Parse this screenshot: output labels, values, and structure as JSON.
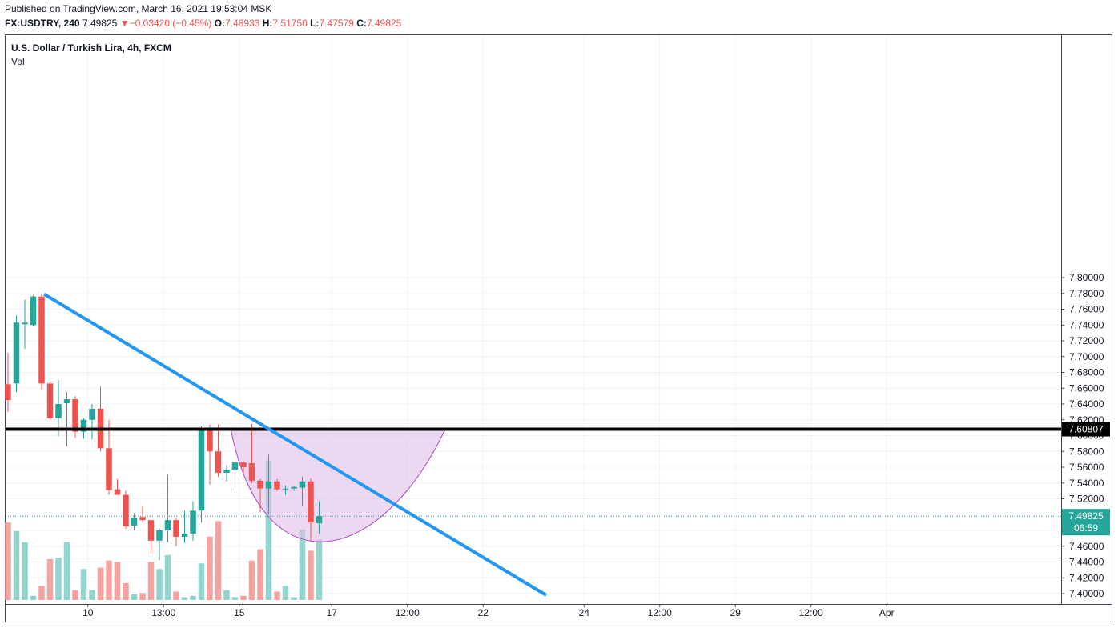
{
  "header": {
    "published": "Published on TradingView.com, March 16, 2021 19:53:04 MSK",
    "symbol": "FX:USDTRY, 240",
    "last": "7.49825",
    "change_arrow": "▼",
    "change": "−0.03420 (−0.45%)",
    "o_label": "O:",
    "o_val": "7.48933",
    "h_label": "H:",
    "h_val": "7.51750",
    "l_label": "L:",
    "l_val": "7.47579",
    "c_label": "C:",
    "c_val": "7.49825"
  },
  "chart_data": {
    "type": "candlestick",
    "title": "U.S. Dollar / Turkish Lira, 4h, FXCM",
    "volume_label": "Vol",
    "y_axis": {
      "range": [
        7.39,
        7.81
      ],
      "ticks": [
        7.4,
        7.42,
        7.44,
        7.46,
        7.48,
        7.5,
        7.52,
        7.54,
        7.56,
        7.58,
        7.6,
        7.62,
        7.64,
        7.66,
        7.68,
        7.7,
        7.72,
        7.74,
        7.76,
        7.78,
        7.8
      ],
      "tick_labels": [
        "7.40000",
        "7.42000",
        "7.44000",
        "7.46000",
        "7.48000",
        "7.50000",
        "7.52000",
        "7.54000",
        "7.56000",
        "7.58000",
        "7.60000",
        "7.62000",
        "7.64000",
        "7.66000",
        "7.68000",
        "7.70000",
        "7.72000",
        "7.74000",
        "7.76000",
        "7.78000",
        "7.80000"
      ]
    },
    "x_axis": {
      "tick_labels": [
        "10",
        "13:00",
        "15",
        "17",
        "12:00",
        "22",
        "24",
        "12:00",
        "29",
        "12:00",
        "Apr"
      ],
      "tick_slots": [
        9.5,
        18.5,
        27.5,
        38.5,
        47.5,
        56.5,
        68.5,
        77.5,
        86.5,
        95.5,
        104.5
      ]
    },
    "candles": [
      {
        "o": 7.665,
        "h": 7.705,
        "l": 7.63,
        "c": 7.645,
        "v": 0.55
      },
      {
        "o": 7.666,
        "h": 7.752,
        "l": 7.655,
        "c": 7.743,
        "v": 0.49
      },
      {
        "o": 7.741,
        "h": 7.772,
        "l": 7.71,
        "c": 7.743,
        "v": 0.41
      },
      {
        "o": 7.74,
        "h": 7.778,
        "l": 7.738,
        "c": 7.776,
        "v": 0.03
      },
      {
        "o": 7.776,
        "h": 7.779,
        "l": 7.658,
        "c": 7.666,
        "v": 0.1
      },
      {
        "o": 7.666,
        "h": 7.668,
        "l": 7.62,
        "c": 7.622,
        "v": 0.29
      },
      {
        "o": 7.622,
        "h": 7.67,
        "l": 7.599,
        "c": 7.64,
        "v": 0.3
      },
      {
        "o": 7.641,
        "h": 7.655,
        "l": 7.586,
        "c": 7.646,
        "v": 0.41
      },
      {
        "o": 7.646,
        "h": 7.65,
        "l": 7.597,
        "c": 7.605,
        "v": 0.07
      },
      {
        "o": 7.605,
        "h": 7.622,
        "l": 7.596,
        "c": 7.62,
        "v": 0.22
      },
      {
        "o": 7.62,
        "h": 7.64,
        "l": 7.595,
        "c": 7.634,
        "v": 0.07
      },
      {
        "o": 7.634,
        "h": 7.662,
        "l": 7.58,
        "c": 7.584,
        "v": 0.23
      },
      {
        "o": 7.584,
        "h": 7.62,
        "l": 7.525,
        "c": 7.531,
        "v": 0.28
      },
      {
        "o": 7.532,
        "h": 7.545,
        "l": 7.525,
        "c": 7.525,
        "v": 0.27
      },
      {
        "o": 7.525,
        "h": 7.53,
        "l": 7.482,
        "c": 7.485,
        "v": 0.12
      },
      {
        "o": 7.486,
        "h": 7.502,
        "l": 7.48,
        "c": 7.496,
        "v": 0.04
      },
      {
        "o": 7.497,
        "h": 7.511,
        "l": 7.49,
        "c": 7.493,
        "v": 0.05
      },
      {
        "o": 7.493,
        "h": 7.494,
        "l": 7.451,
        "c": 7.467,
        "v": 0.27
      },
      {
        "o": 7.467,
        "h": 7.482,
        "l": 7.442,
        "c": 7.48,
        "v": 0.22
      },
      {
        "o": 7.48,
        "h": 7.551,
        "l": 7.465,
        "c": 7.493,
        "v": 0.32
      },
      {
        "o": 7.493,
        "h": 7.495,
        "l": 7.46,
        "c": 7.472,
        "v": 0.06
      },
      {
        "o": 7.472,
        "h": 7.505,
        "l": 7.464,
        "c": 7.476,
        "v": 0.02
      },
      {
        "o": 7.476,
        "h": 7.517,
        "l": 7.467,
        "c": 7.505,
        "v": 0.03
      },
      {
        "o": 7.505,
        "h": 7.612,
        "l": 7.49,
        "c": 7.61,
        "v": 0.26
      },
      {
        "o": 7.61,
        "h": 7.614,
        "l": 7.538,
        "c": 7.58,
        "v": 0.45
      },
      {
        "o": 7.58,
        "h": 7.614,
        "l": 7.548,
        "c": 7.553,
        "v": 0.56
      },
      {
        "o": 7.553,
        "h": 7.563,
        "l": 7.542,
        "c": 7.557,
        "v": 0.07
      },
      {
        "o": 7.557,
        "h": 7.565,
        "l": 7.53,
        "c": 7.566,
        "v": 0.02
      },
      {
        "o": 7.566,
        "h": 7.568,
        "l": 7.552,
        "c": 7.56,
        "v": 0.03
      },
      {
        "o": 7.565,
        "h": 7.615,
        "l": 7.54,
        "c": 7.543,
        "v": 0.28
      },
      {
        "o": 7.543,
        "h": 7.545,
        "l": 7.503,
        "c": 7.533,
        "v": 0.36
      },
      {
        "o": 7.533,
        "h": 7.576,
        "l": 7.5,
        "c": 7.542,
        "v": 0.99
      },
      {
        "o": 7.542,
        "h": 7.545,
        "l": 7.53,
        "c": 7.532,
        "v": 0.06
      },
      {
        "o": 7.533,
        "h": 7.537,
        "l": 7.525,
        "c": 7.533,
        "v": 0.1
      },
      {
        "o": 7.533,
        "h": 7.536,
        "l": 7.53,
        "c": 7.535,
        "v": 0.02
      },
      {
        "o": 7.534,
        "h": 7.548,
        "l": 7.511,
        "c": 7.542,
        "v": 0.5
      },
      {
        "o": 7.542,
        "h": 7.546,
        "l": 7.467,
        "c": 7.49,
        "v": 0.35
      },
      {
        "o": 7.489,
        "h": 7.517,
        "l": 7.476,
        "c": 7.498,
        "v": 0.43
      }
    ],
    "annotations": {
      "resistance_level": 7.60807,
      "resistance_label": "7.60807",
      "last_price_label": "7.49825",
      "countdown_label": "06:59"
    },
    "colors": {
      "up": "#26a69a",
      "down": "#ef5350",
      "up_volume": "#94d4cf",
      "down_volume": "#f5a3a1",
      "trendline": "#2196f3",
      "resistance": "#000000",
      "pattern_fill": "#e1bee7",
      "pattern_stroke": "#ab47bc",
      "grid": "#f0f3fa",
      "text": "#131722"
    }
  }
}
